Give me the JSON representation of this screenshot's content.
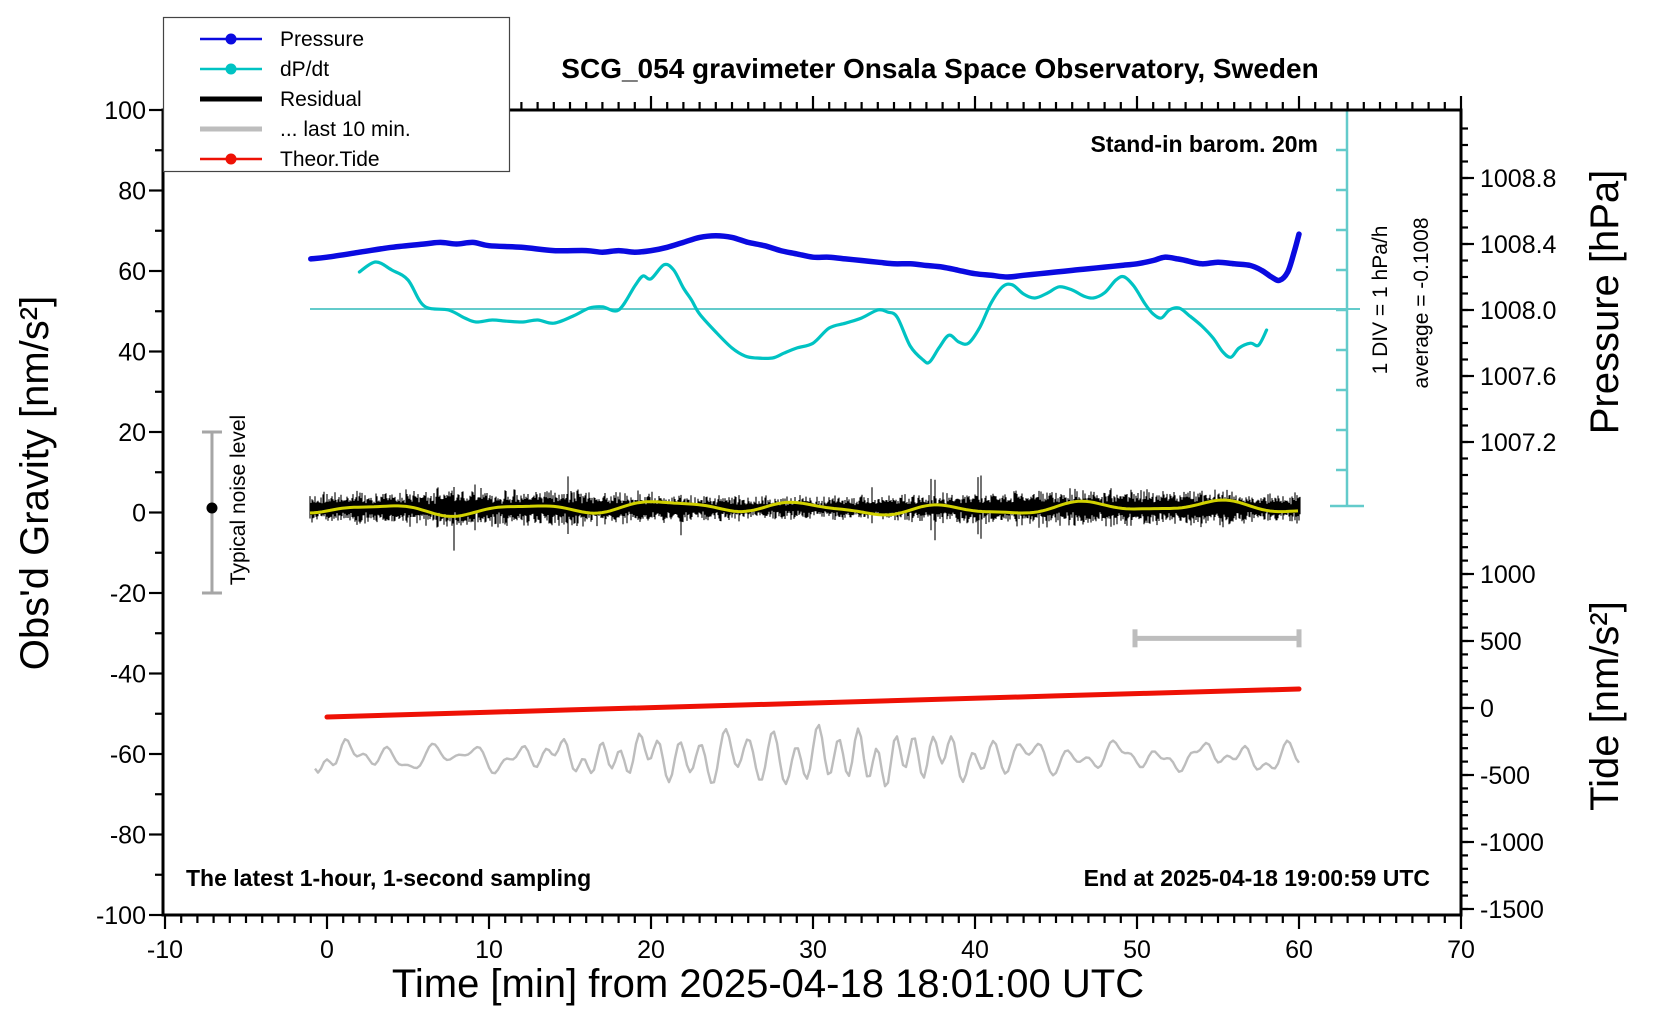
{
  "title": "SCG_054 gravimeter Onsala Space Observatory, Sweden",
  "annotations": {
    "stand_in": "Stand-in barom. 20m",
    "div_scale": "1 DIV = 1 hPa/h",
    "average": "average = -0.1008",
    "noise_label": "Typical noise level",
    "sampling_note": "The latest 1-hour, 1-second sampling",
    "end_note": "End at 2025-04-18 19:00:59 UTC"
  },
  "colors": {
    "pressure": "#0a0ae0",
    "dpdt": "#00c3c3",
    "zero_line": "#63cbcb",
    "residual": "#000000",
    "residual_smooth": "#d2d200",
    "last10": "#bdbdbd",
    "tide": "#ee1105",
    "noise_bar": "#a6a6a6",
    "axis": "#000000",
    "legend_border": "#444444"
  },
  "legend": {
    "items": [
      {
        "label": "Pressure",
        "color": "#0a0ae0",
        "width": 2.5,
        "dot": true
      },
      {
        "label": "dP/dt",
        "color": "#00c3c3",
        "width": 2.5,
        "dot": true
      },
      {
        "label": "Residual",
        "color": "#000000",
        "width": 5,
        "dot": false
      },
      {
        "label": "... last 10 min.",
        "color": "#bdbdbd",
        "width": 5,
        "dot": false
      },
      {
        "label": "Theor.Tide",
        "color": "#ee1105",
        "width": 2.5,
        "dot": true
      }
    ]
  },
  "axes": {
    "x": {
      "label": "Time [min] from 2025-04-18 18:01:00 UTC",
      "min": -10,
      "max": 70,
      "major_ticks": [
        -10,
        0,
        10,
        20,
        30,
        40,
        50,
        60,
        70
      ],
      "major_labels": [
        "-10",
        "0",
        "10",
        "20",
        "30",
        "40",
        "50",
        "60",
        "70"
      ],
      "minor_step": 1
    },
    "y_left": {
      "label": "Obs'd Gravity [nm/s²]",
      "min": -100,
      "max": 100,
      "major_ticks": [
        100,
        80,
        60,
        40,
        20,
        0,
        -20,
        -40,
        -60,
        -80,
        -100
      ],
      "major_labels": [
        "100",
        "80",
        "60",
        "40",
        "20",
        "0",
        "-20",
        "-40",
        "-60",
        "-80",
        "-100"
      ],
      "minor_step": 10
    },
    "y_right_pressure": {
      "label": "Pressure [hPa]",
      "major_ticks": [
        1008.8,
        1008.4,
        1008.0,
        1007.6,
        1007.2
      ],
      "major_labels": [
        "1008.8",
        "1008.4",
        "1008.0",
        "1007.6",
        "1007.2"
      ],
      "minor_step": 0.1
    },
    "y_right_tide": {
      "label": "Tide [nm/s²]",
      "major_ticks": [
        1000,
        500,
        0,
        -500,
        -1000,
        -1500
      ],
      "major_labels": [
        "1000",
        "500",
        "0",
        "-500",
        "-1000",
        "-1500"
      ],
      "minor_step": 100
    }
  },
  "chart_data": {
    "type": "line",
    "x_unit": "minutes",
    "x_range": [
      -10,
      70
    ],
    "gravity_range": [
      -100,
      100
    ],
    "pressure_range_hPa": [
      1006.97,
      1009.21
    ],
    "tide_range_nm_s2": [
      -1530,
      1710
    ],
    "series": [
      {
        "name": "Pressure",
        "axis": "pressure_hPa",
        "points": [
          [
            -1,
            1008.31
          ],
          [
            0,
            1008.32
          ],
          [
            2,
            1008.35
          ],
          [
            4,
            1008.38
          ],
          [
            6,
            1008.4
          ],
          [
            7,
            1008.41
          ],
          [
            8,
            1008.4
          ],
          [
            9,
            1008.41
          ],
          [
            10,
            1008.39
          ],
          [
            12,
            1008.38
          ],
          [
            14,
            1008.36
          ],
          [
            16,
            1008.36
          ],
          [
            17,
            1008.35
          ],
          [
            18,
            1008.36
          ],
          [
            19,
            1008.35
          ],
          [
            20,
            1008.36
          ],
          [
            21,
            1008.38
          ],
          [
            22,
            1008.41
          ],
          [
            23,
            1008.44
          ],
          [
            24,
            1008.45
          ],
          [
            25,
            1008.44
          ],
          [
            26,
            1008.41
          ],
          [
            27,
            1008.39
          ],
          [
            28,
            1008.36
          ],
          [
            29,
            1008.34
          ],
          [
            30,
            1008.32
          ],
          [
            31,
            1008.32
          ],
          [
            32,
            1008.31
          ],
          [
            33,
            1008.3
          ],
          [
            34,
            1008.29
          ],
          [
            35,
            1008.28
          ],
          [
            36,
            1008.28
          ],
          [
            37,
            1008.27
          ],
          [
            38,
            1008.26
          ],
          [
            39,
            1008.24
          ],
          [
            40,
            1008.22
          ],
          [
            41,
            1008.21
          ],
          [
            42,
            1008.2
          ],
          [
            43,
            1008.21
          ],
          [
            44,
            1008.22
          ],
          [
            45,
            1008.23
          ],
          [
            46,
            1008.24
          ],
          [
            47,
            1008.25
          ],
          [
            48,
            1008.26
          ],
          [
            49,
            1008.27
          ],
          [
            50,
            1008.28
          ],
          [
            51,
            1008.3
          ],
          [
            51.7,
            1008.32
          ],
          [
            52.5,
            1008.31
          ],
          [
            53,
            1008.3
          ],
          [
            54,
            1008.28
          ],
          [
            55,
            1008.29
          ],
          [
            56,
            1008.28
          ],
          [
            57,
            1008.27
          ],
          [
            57.7,
            1008.24
          ],
          [
            58.3,
            1008.2
          ],
          [
            58.8,
            1008.18
          ],
          [
            59.3,
            1008.23
          ],
          [
            59.7,
            1008.35
          ],
          [
            60,
            1008.46
          ]
        ]
      },
      {
        "name": "dP/dt",
        "axis": "hPa_per_hour",
        "div_equals": "1 DIV = 1 hPa/h",
        "average": -0.1008,
        "zero_level_gravity": 50,
        "points": [
          [
            2,
            0.95
          ],
          [
            3,
            1.2
          ],
          [
            4,
            1.0
          ],
          [
            5,
            0.75
          ],
          [
            6,
            0.1
          ],
          [
            7.5,
            0
          ],
          [
            8.5,
            -0.2
          ],
          [
            9.2,
            -0.3
          ],
          [
            10.2,
            -0.25
          ],
          [
            11.1,
            -0.28
          ],
          [
            12.1,
            -0.3
          ],
          [
            13,
            -0.25
          ],
          [
            14,
            -0.33
          ],
          [
            15.2,
            -0.15
          ],
          [
            16.2,
            0.05
          ],
          [
            17,
            0.08
          ],
          [
            18,
            0
          ],
          [
            19,
            0.6
          ],
          [
            19.5,
            0.85
          ],
          [
            20,
            0.78
          ],
          [
            20.8,
            1.13
          ],
          [
            21.4,
            1.0
          ],
          [
            22,
            0.55
          ],
          [
            22.5,
            0.25
          ],
          [
            23,
            -0.1
          ],
          [
            24,
            -0.55
          ],
          [
            25,
            -0.95
          ],
          [
            25.8,
            -1.15
          ],
          [
            26.5,
            -1.2
          ],
          [
            27.5,
            -1.2
          ],
          [
            28.2,
            -1.08
          ],
          [
            29,
            -0.95
          ],
          [
            30,
            -0.83
          ],
          [
            31,
            -0.45
          ],
          [
            32,
            -0.33
          ],
          [
            33,
            -0.2
          ],
          [
            34,
            0
          ],
          [
            34.6,
            -0.05
          ],
          [
            35.2,
            -0.18
          ],
          [
            36,
            -0.9
          ],
          [
            36.8,
            -1.25
          ],
          [
            37.2,
            -1.3
          ],
          [
            37.8,
            -0.93
          ],
          [
            38.4,
            -0.63
          ],
          [
            39,
            -0.8
          ],
          [
            39.6,
            -0.83
          ],
          [
            40.3,
            -0.43
          ],
          [
            41,
            0.18
          ],
          [
            41.7,
            0.58
          ],
          [
            42.3,
            0.63
          ],
          [
            43,
            0.4
          ],
          [
            43.7,
            0.3
          ],
          [
            44.5,
            0.43
          ],
          [
            45.2,
            0.58
          ],
          [
            46,
            0.5
          ],
          [
            46.7,
            0.35
          ],
          [
            47.3,
            0.3
          ],
          [
            48,
            0.43
          ],
          [
            48.7,
            0.75
          ],
          [
            49.2,
            0.83
          ],
          [
            49.8,
            0.6
          ],
          [
            50.5,
            0.15
          ],
          [
            51,
            -0.1
          ],
          [
            51.5,
            -0.2
          ],
          [
            52,
            0
          ],
          [
            52.6,
            0.05
          ],
          [
            53.2,
            -0.13
          ],
          [
            54,
            -0.4
          ],
          [
            54.7,
            -0.7
          ],
          [
            55.3,
            -1.05
          ],
          [
            55.8,
            -1.18
          ],
          [
            56.3,
            -0.95
          ],
          [
            57,
            -0.83
          ],
          [
            57.5,
            -0.88
          ],
          [
            58,
            -0.5
          ]
        ]
      },
      {
        "name": "Theor.Tide",
        "axis": "tide_nm_s2",
        "points": [
          [
            0,
            -67
          ],
          [
            15,
            -14
          ],
          [
            30,
            37
          ],
          [
            45,
            90
          ],
          [
            60,
            142
          ]
        ]
      },
      {
        "name": "Residual",
        "axis": "gravity_nm_s2",
        "description": "1-second residual noise band with yellow smoothed mean",
        "t_range": [
          -1,
          60
        ],
        "mean": 1,
        "typical_amplitude": 4,
        "spike_amplitude": 11
      },
      {
        "name": "... last 10 min.",
        "axis": "tide_nm_s2",
        "description": "last-10-minute residual stretched across full width",
        "t_range": [
          -1,
          60
        ],
        "center": -360,
        "typical_amplitude": 200
      }
    ],
    "markers": {
      "last10_window_bar": {
        "t_start": 50,
        "t_end": 60,
        "tide_value": 520
      },
      "typical_noise_bar": {
        "t": -7.1,
        "gravity_min": -20,
        "gravity_max": 20,
        "dot_value": 0
      },
      "dpdt_div_bar": {
        "gravity_top": 100,
        "gravity_bottom": -1.6,
        "t": 62.9
      }
    },
    "legend_position": "top-left",
    "grid": false
  }
}
